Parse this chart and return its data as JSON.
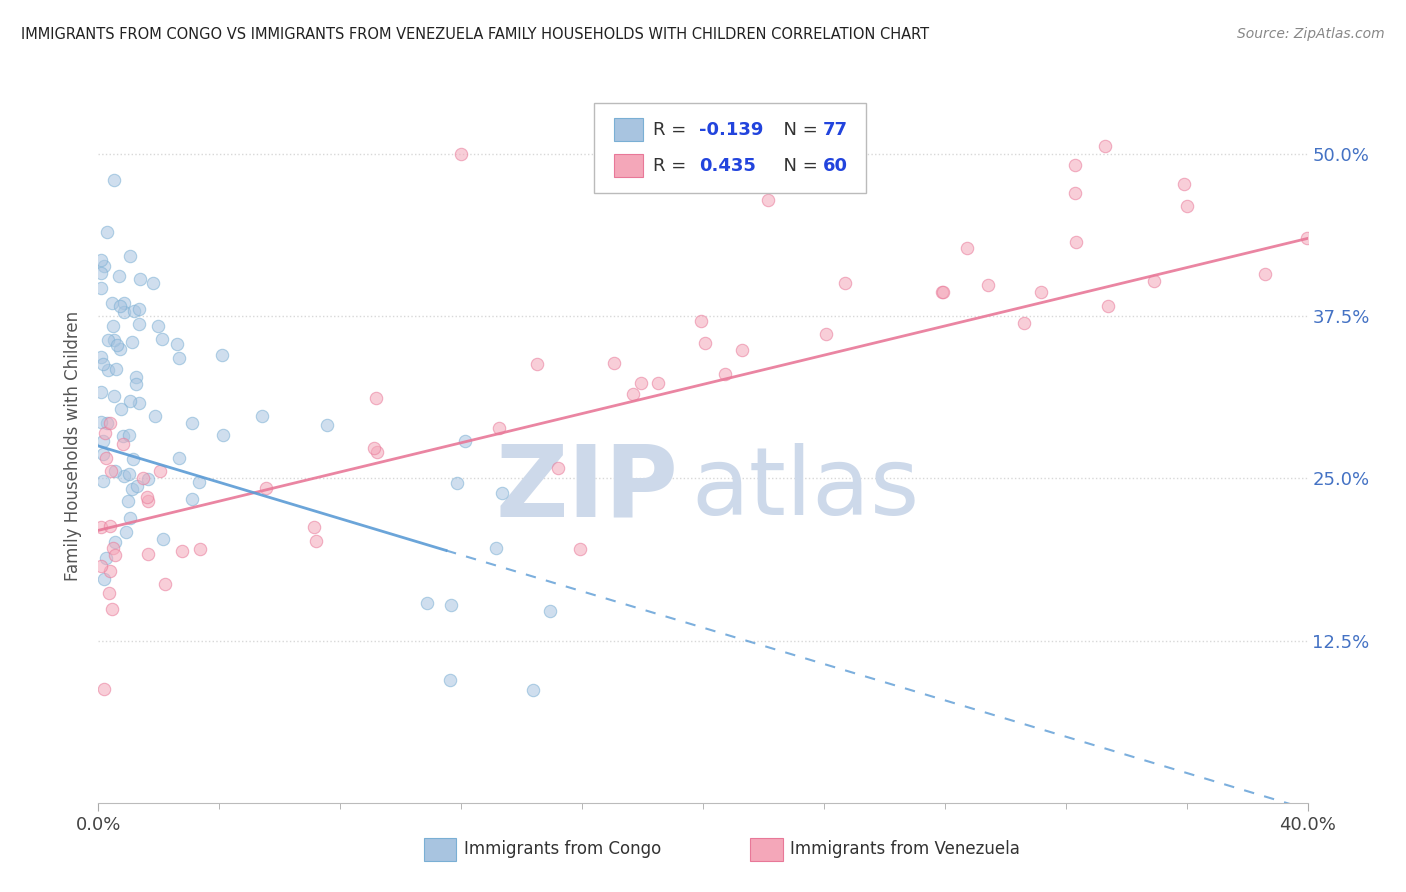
{
  "title": "IMMIGRANTS FROM CONGO VS IMMIGRANTS FROM VENEZUELA FAMILY HOUSEHOLDS WITH CHILDREN CORRELATION CHART",
  "source": "Source: ZipAtlas.com",
  "ylabel": "Family Households with Children",
  "xlim": [
    0.0,
    0.4
  ],
  "ylim": [
    0.0,
    0.55
  ],
  "x_tick_labels": [
    "0.0%",
    "40.0%"
  ],
  "y_ticks_right": [
    0.125,
    0.25,
    0.375,
    0.5
  ],
  "y_tick_labels_right": [
    "12.5%",
    "25.0%",
    "37.5%",
    "50.0%"
  ],
  "congo_color": "#a8c4e0",
  "venezuela_color": "#f4a7b9",
  "congo_edge_color": "#7aafd4",
  "venezuela_edge_color": "#e87898",
  "trend_congo_color": "#5b9bd5",
  "trend_venezuela_color": "#e87898",
  "legend_R_congo": "-0.139",
  "legend_N_congo": "77",
  "legend_R_venezuela": "0.435",
  "legend_N_venezuela": "60",
  "marker_size": 80,
  "marker_alpha": 0.55,
  "background_color": "#ffffff",
  "grid_color": "#d8d8d8",
  "right_tick_color": "#4472c4",
  "watermark_color": "#cdd9ea"
}
